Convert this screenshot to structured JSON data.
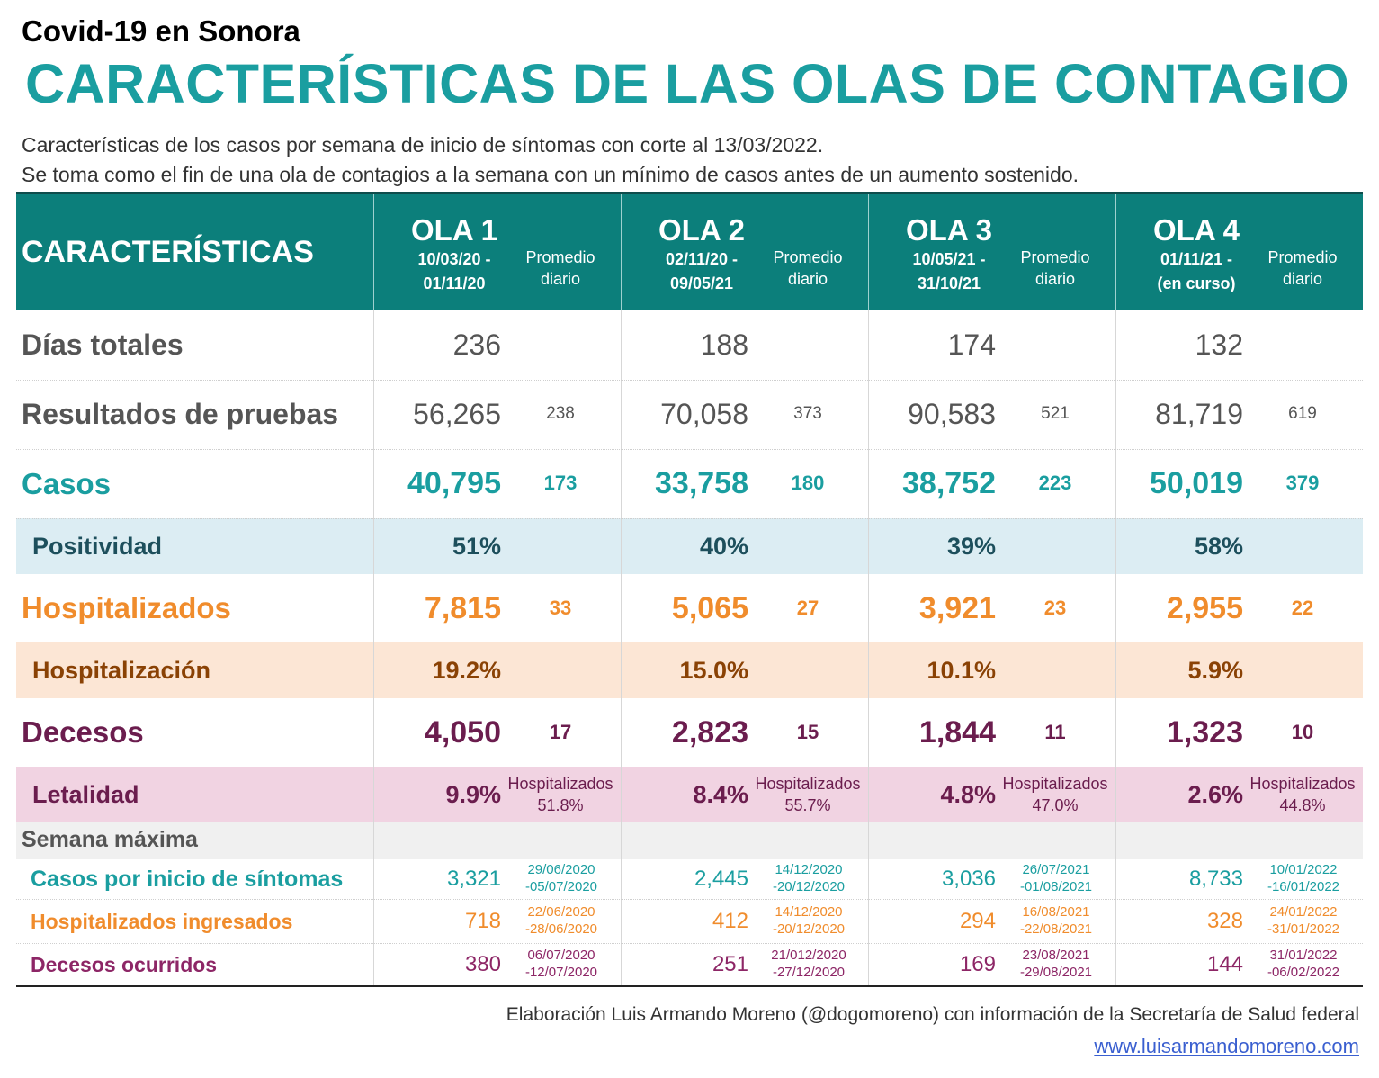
{
  "supertitle": "Covid-19 en Sonora",
  "title": "CARACTERÍSTICAS DE LAS OLAS DE CONTAGIO",
  "subtitle_1": "Características de los casos por semana de inicio de síntomas con corte al 13/03/2022.",
  "subtitle_2": "Se toma como el fin de una ola de contagios a la semana con un mínimo de casos antes de un aumento sostenido.",
  "header": {
    "characteristics": "CARACTERÍSTICAS",
    "promedio_line1": "Promedio",
    "promedio_line2": "diario"
  },
  "colors": {
    "teal": "#1a9ea0",
    "header_bg": "#0c7f7b",
    "orange": "#f08c2c",
    "orange_dark": "#8a4205",
    "purple": "#6b1d4e",
    "positividad_bg": "#dcedf3",
    "hospitalizacion_bg": "#fce6d5",
    "letalidad_bg": "#f1d3e2"
  },
  "chart_data": {
    "type": "table",
    "waves": [
      {
        "name": "OLA 1",
        "dates_line1": "10/03/20 -",
        "dates_line2": "01/11/20",
        "dias": "236",
        "pruebas": "56,265",
        "pruebas_avg": "238",
        "casos": "40,795",
        "casos_avg": "173",
        "positividad": "51%",
        "hosp": "7,815",
        "hosp_avg": "33",
        "hospitalizacion": "19.2%",
        "decesos": "4,050",
        "decesos_avg": "17",
        "letalidad": "9.9%",
        "let_hosp_label": "Hospitalizados",
        "let_hosp_value": "51.8%",
        "max_casos": "3,321",
        "max_casos_d1": "29/06/2020",
        "max_casos_d2": "-05/07/2020",
        "max_hosp": "718",
        "max_hosp_d1": "22/06/2020",
        "max_hosp_d2": "-28/06/2020",
        "max_dec": "380",
        "max_dec_d1": "06/07/2020",
        "max_dec_d2": "-12/07/2020"
      },
      {
        "name": "OLA 2",
        "dates_line1": "02/11/20 -",
        "dates_line2": "09/05/21",
        "dias": "188",
        "pruebas": "70,058",
        "pruebas_avg": "373",
        "casos": "33,758",
        "casos_avg": "180",
        "positividad": "40%",
        "hosp": "5,065",
        "hosp_avg": "27",
        "hospitalizacion": "15.0%",
        "decesos": "2,823",
        "decesos_avg": "15",
        "letalidad": "8.4%",
        "let_hosp_label": "Hospitalizados",
        "let_hosp_value": "55.7%",
        "max_casos": "2,445",
        "max_casos_d1": "14/12/2020",
        "max_casos_d2": "-20/12/2020",
        "max_hosp": "412",
        "max_hosp_d1": "14/12/2020",
        "max_hosp_d2": "-20/12/2020",
        "max_dec": "251",
        "max_dec_d1": "21/012/2020",
        "max_dec_d2": "-27/12/2020"
      },
      {
        "name": "OLA 3",
        "dates_line1": "10/05/21 -",
        "dates_line2": "31/10/21",
        "dias": "174",
        "pruebas": "90,583",
        "pruebas_avg": "521",
        "casos": "38,752",
        "casos_avg": "223",
        "positividad": "39%",
        "hosp": "3,921",
        "hosp_avg": "23",
        "hospitalizacion": "10.1%",
        "decesos": "1,844",
        "decesos_avg": "11",
        "letalidad": "4.8%",
        "let_hosp_label": "Hospitalizados",
        "let_hosp_value": "47.0%",
        "max_casos": "3,036",
        "max_casos_d1": "26/07/2021",
        "max_casos_d2": "-01/08/2021",
        "max_hosp": "294",
        "max_hosp_d1": "16/08/2021",
        "max_hosp_d2": "-22/08/2021",
        "max_dec": "169",
        "max_dec_d1": "23/08/2021",
        "max_dec_d2": "-29/08/2021"
      },
      {
        "name": "OLA 4",
        "dates_line1": "01/11/21 -",
        "dates_line2": "(en curso)",
        "dias": "132",
        "pruebas": "81,719",
        "pruebas_avg": "619",
        "casos": "50,019",
        "casos_avg": "379",
        "positividad": "58%",
        "hosp": "2,955",
        "hosp_avg": "22",
        "hospitalizacion": "5.9%",
        "decesos": "1,323",
        "decesos_avg": "10",
        "letalidad": "2.6%",
        "let_hosp_label": "Hospitalizados",
        "let_hosp_value": "44.8%",
        "max_casos": "8,733",
        "max_casos_d1": "10/01/2022",
        "max_casos_d2": "-16/01/2022",
        "max_hosp": "328",
        "max_hosp_d1": "24/01/2022",
        "max_hosp_d2": "-31/01/2022",
        "max_dec": "144",
        "max_dec_d1": "31/01/2022",
        "max_dec_d2": "-06/02/2022"
      }
    ],
    "row_labels": {
      "dias": "Días totales",
      "pruebas": "Resultados de pruebas",
      "casos": "Casos",
      "positividad": "Positividad",
      "hosp": "Hospitalizados",
      "hospitalizacion": "Hospitalización",
      "decesos": "Decesos",
      "letalidad": "Letalidad",
      "semana": "Semana máxima",
      "max_casos": "Casos por inicio de síntomas",
      "max_hosp": "Hospitalizados ingresados",
      "max_dec": "Decesos ocurridos"
    }
  },
  "footer": {
    "credit": "Elaboración Luis Armando Moreno (@dogomoreno) con información de la Secretaría de Salud federal",
    "url": "www.luisarmandomoreno.com"
  }
}
